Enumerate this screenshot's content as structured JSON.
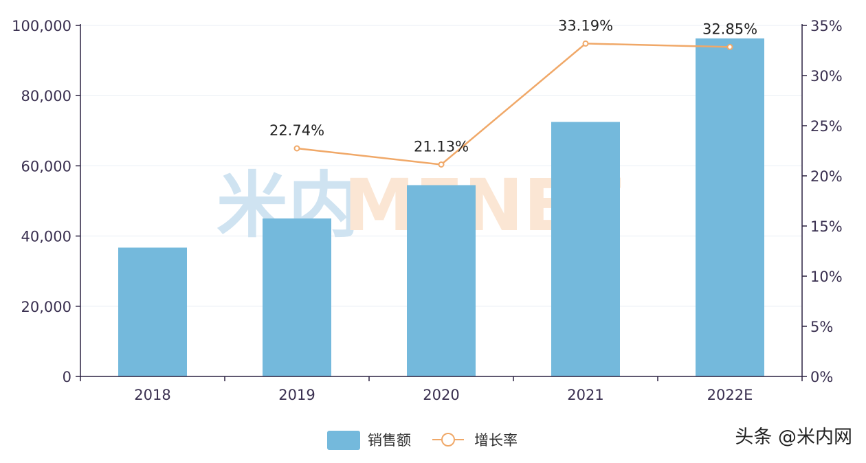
{
  "chart_data": {
    "type": "bar",
    "categories": [
      "2018",
      "2019",
      "2020",
      "2021",
      "2022E"
    ],
    "series": [
      {
        "name": "销售额",
        "kind": "bar",
        "axis": "left",
        "color": "#74b9dc",
        "values": [
          36700,
          45000,
          54500,
          72500,
          96300
        ]
      },
      {
        "name": "增长率",
        "kind": "line",
        "axis": "right",
        "color": "#f0a868",
        "values": [
          null,
          22.74,
          21.13,
          33.19,
          32.85
        ],
        "labels": [
          "",
          "22.74%",
          "21.13%",
          "33.19%",
          "32.85%"
        ]
      }
    ],
    "y_left": {
      "range": [
        0,
        100000
      ],
      "ticks": [
        0,
        20000,
        40000,
        60000,
        80000,
        100000
      ],
      "tick_labels": [
        "0",
        "20,000",
        "40,000",
        "60,000",
        "80,000",
        "100,000"
      ]
    },
    "y_right": {
      "range": [
        0,
        35
      ],
      "ticks": [
        0,
        5,
        10,
        15,
        20,
        25,
        30,
        35
      ],
      "tick_labels": [
        "0%",
        "5%",
        "10%",
        "15%",
        "20%",
        "25%",
        "30%",
        "35%"
      ]
    },
    "grid": true,
    "legend_position": "bottom-center"
  },
  "watermark": {
    "cn": "米内",
    "en": "MENET"
  },
  "footer_credit": "头条 @米内网",
  "colors": {
    "axis": "#2a2040",
    "grid": "#e8eef4",
    "tick_text": "#3a3050",
    "watermark_blue": "#cfe3f1",
    "watermark_orange": "#fbe6d4"
  }
}
